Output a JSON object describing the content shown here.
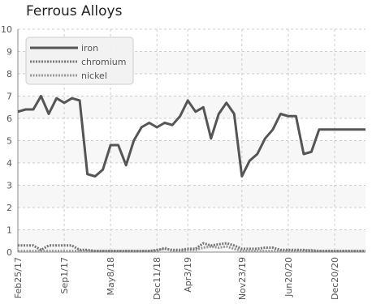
{
  "chart_data": {
    "type": "line",
    "title": "Ferrous Alloys",
    "xlabel": "",
    "ylabel": "",
    "ylim": [
      0,
      10
    ],
    "yticks": [
      0,
      1,
      2,
      3,
      4,
      5,
      6,
      7,
      8,
      9,
      10
    ],
    "xtick_labels": [
      "Feb25/17",
      "Sep1/17",
      "May8/18",
      "Dec11/18",
      "Apr3/19",
      "Nov23/19",
      "Jun20/20",
      "Dec20/20"
    ],
    "x": [
      "Feb25/17",
      "Apr/17",
      "May/17",
      "Jun/17",
      "Jul/17",
      "Aug/17",
      "Sep1/17",
      "Oct/17",
      "Nov/17",
      "Dec/17",
      "Jan/18",
      "Mar/18",
      "May8/18",
      "Jun/18",
      "Jul/18",
      "Aug/18",
      "Sep/18",
      "Oct/18",
      "Dec11/18",
      "Jan/19",
      "Feb/19",
      "Mar/19",
      "Apr3/19",
      "May/19",
      "Jun/19",
      "Jul/19",
      "Aug/19",
      "Sep/19",
      "Oct/19",
      "Nov23/19",
      "Dec/19",
      "Jan/20",
      "Feb/20",
      "Mar/20",
      "Apr/20",
      "Jun20/20",
      "Jul/20",
      "Aug/20",
      "Sep/20",
      "Oct/20",
      "Nov/20",
      "Dec20/20",
      "Jan/21",
      "Feb/21",
      "Mar/21",
      "Apr/21"
    ],
    "series": [
      {
        "name": "iron",
        "color": "#555555",
        "style": "solid",
        "values": [
          6.3,
          6.4,
          6.4,
          7.0,
          6.2,
          6.9,
          6.7,
          6.9,
          6.8,
          3.5,
          3.4,
          3.7,
          4.8,
          4.8,
          3.9,
          5.0,
          5.6,
          5.8,
          5.6,
          5.8,
          5.7,
          6.1,
          6.8,
          6.3,
          6.5,
          5.1,
          6.2,
          6.7,
          6.2,
          3.4,
          4.1,
          4.4,
          5.1,
          5.5,
          6.2,
          6.1,
          6.1,
          4.4,
          4.5,
          5.5,
          5.5,
          5.5,
          5.5,
          5.5,
          5.5,
          5.5
        ]
      },
      {
        "name": "chromium",
        "color": "#777777",
        "style": "dashed",
        "values": [
          0.3,
          0.3,
          0.3,
          0.1,
          0.3,
          0.3,
          0.3,
          0.3,
          0.1,
          0.1,
          0.05,
          0.05,
          0.05,
          0.05,
          0.05,
          0.05,
          0.05,
          0.05,
          0.1,
          0.15,
          0.1,
          0.1,
          0.15,
          0.15,
          0.4,
          0.3,
          0.35,
          0.4,
          0.3,
          0.15,
          0.15,
          0.15,
          0.2,
          0.2,
          0.1,
          0.1,
          0.1,
          0.1,
          0.05,
          0.05,
          0.05,
          0.05,
          0.05,
          0.05,
          0.05,
          0.05
        ]
      },
      {
        "name": "nickel",
        "color": "#999999",
        "style": "dashed",
        "values": [
          0.05,
          0.05,
          0.05,
          0.05,
          0.05,
          0.05,
          0.05,
          0.05,
          0.05,
          0.05,
          0.05,
          0.05,
          0.05,
          0.05,
          0.05,
          0.05,
          0.05,
          0.05,
          0.05,
          0.2,
          0.05,
          0.05,
          0.1,
          0.1,
          0.2,
          0.25,
          0.2,
          0.25,
          0.15,
          0.05,
          0.05,
          0.05,
          0.05,
          0.05,
          0.05,
          0.05,
          0.05,
          0.05,
          0.1,
          0.05,
          0.05,
          0.05,
          0.05,
          0.05,
          0.05,
          0.05
        ]
      }
    ],
    "legend": {
      "position": "top-left",
      "entries": [
        "iron",
        "chromium",
        "nickel"
      ]
    },
    "grid": true,
    "colors": {
      "band_light": "#f7f7f7",
      "band_white": "#ffffff",
      "grid": "#cccccc",
      "axis": "#888888",
      "tick_text": "#555555",
      "legend_bg": "#f2f2f2",
      "legend_border": "#cccccc"
    }
  }
}
